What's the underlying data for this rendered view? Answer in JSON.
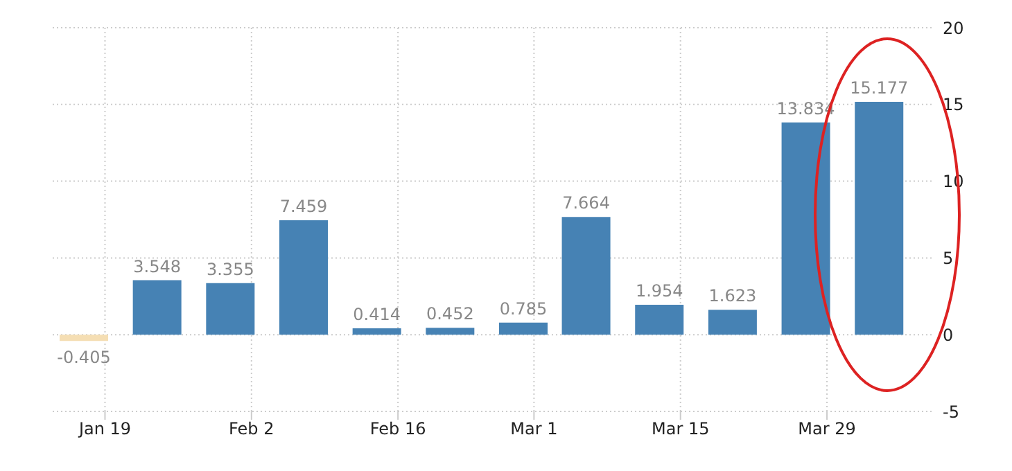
{
  "chart_data": {
    "type": "bar",
    "x": [
      "--01-17",
      "--01-24",
      "--01-31",
      "--02-07",
      "--02-14",
      "--02-21",
      "--02-28",
      "--03-06",
      "--03-13",
      "--03-20",
      "--03-27",
      "--04-03"
    ],
    "values": [
      -0.405,
      3.548,
      3.355,
      7.459,
      0.414,
      0.452,
      0.785,
      7.664,
      1.954,
      1.623,
      13.834,
      15.177
    ],
    "colors": [
      "#f5deb3",
      "#4682b4",
      "#4682b4",
      "#4682b4",
      "#4682b4",
      "#4682b4",
      "#4682b4",
      "#4682b4",
      "#4682b4",
      "#4682b4",
      "#4682b4",
      "#4682b4"
    ],
    "xlim": [
      "--01-14",
      "--04-08"
    ],
    "xticks": [
      {
        "value": "--01-19",
        "label": "Jan 19"
      },
      {
        "value": "--02-02",
        "label": "Feb 2"
      },
      {
        "value": "--02-16",
        "label": "Feb 16"
      },
      {
        "value": "--03-01",
        "label": "Mar 1"
      },
      {
        "value": "--03-15",
        "label": "Mar 15"
      },
      {
        "value": "--03-29",
        "label": "Mar 29"
      }
    ],
    "ylim": [
      -5,
      20
    ],
    "yticks": [
      -5,
      0,
      5,
      10,
      15,
      20
    ],
    "grid": true,
    "data_labels": true
  }
}
